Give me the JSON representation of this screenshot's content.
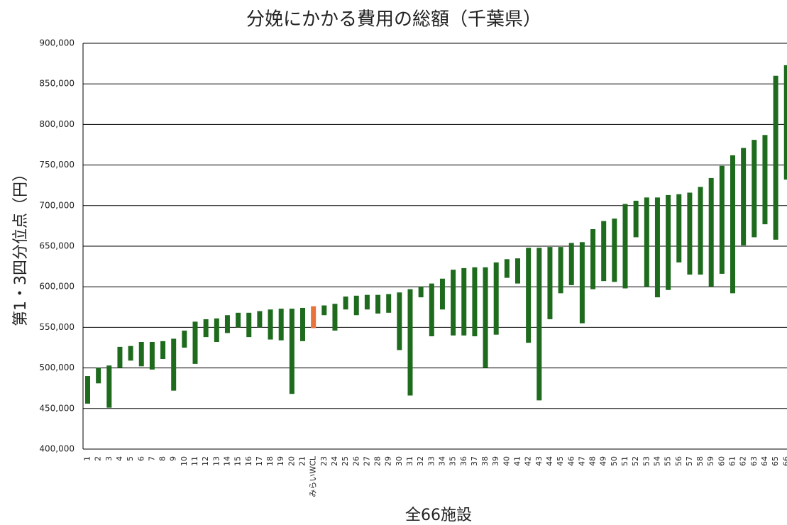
{
  "chart_data": {
    "type": "floating-bar",
    "title": "分娩にかかる費用の総額（千葉県）",
    "x_label": "全66施設",
    "y_label": "第1・3四分位点（円）",
    "categories": [
      "1",
      "2",
      "3",
      "4",
      "5",
      "6",
      "7",
      "8",
      "9",
      "10",
      "11",
      "12",
      "13",
      "14",
      "15",
      "16",
      "17",
      "18",
      "19",
      "20",
      "21",
      "みらいWCL",
      "23",
      "24",
      "25",
      "26",
      "27",
      "28",
      "29",
      "30",
      "31",
      "32",
      "33",
      "34",
      "35",
      "36",
      "37",
      "38",
      "39",
      "40",
      "41",
      "42",
      "43",
      "44",
      "45",
      "46",
      "47",
      "48",
      "49",
      "50",
      "51",
      "52",
      "53",
      "54",
      "55",
      "56",
      "57",
      "58",
      "59",
      "60",
      "61",
      "62",
      "63",
      "64",
      "65",
      "66"
    ],
    "high": [
      490000,
      500000,
      503000,
      526000,
      527000,
      532000,
      532000,
      533000,
      536000,
      546000,
      557000,
      560000,
      561000,
      565000,
      568000,
      568000,
      570000,
      572000,
      573000,
      573000,
      574000,
      576000,
      577000,
      579000,
      588000,
      589000,
      590000,
      590000,
      591000,
      593000,
      597000,
      600000,
      604000,
      610000,
      621000,
      623000,
      624000,
      624000,
      630000,
      634000,
      635000,
      648000,
      648000,
      649000,
      649000,
      654000,
      655000,
      671000,
      681000,
      684000,
      702000,
      706000,
      710000,
      710000,
      713000,
      714000,
      716000,
      723000,
      734000,
      749000,
      762000,
      771000,
      781000,
      787000,
      860000,
      873000
    ],
    "low": [
      456000,
      481000,
      451000,
      500000,
      509000,
      502000,
      498000,
      511000,
      472000,
      525000,
      505000,
      538000,
      532000,
      543000,
      550000,
      538000,
      550000,
      535000,
      534000,
      468000,
      533000,
      549000,
      565000,
      546000,
      572000,
      565000,
      572000,
      567000,
      568000,
      522000,
      466000,
      587000,
      539000,
      572000,
      540000,
      540000,
      539000,
      500000,
      541000,
      611000,
      604000,
      531000,
      460000,
      560000,
      592000,
      602000,
      555000,
      597000,
      607000,
      606000,
      598000,
      661000,
      600000,
      587000,
      596000,
      630000,
      615000,
      615000,
      600000,
      616000,
      592000,
      651000,
      661000,
      677000,
      658000,
      732000
    ],
    "colors": [
      "#1e6b1e",
      "#1e6b1e",
      "#1e6b1e",
      "#1e6b1e",
      "#1e6b1e",
      "#1e6b1e",
      "#1e6b1e",
      "#1e6b1e",
      "#1e6b1e",
      "#1e6b1e",
      "#1e6b1e",
      "#1e6b1e",
      "#1e6b1e",
      "#1e6b1e",
      "#1e6b1e",
      "#1e6b1e",
      "#1e6b1e",
      "#1e6b1e",
      "#1e6b1e",
      "#1e6b1e",
      "#1e6b1e",
      "#e8743b",
      "#1e6b1e",
      "#1e6b1e",
      "#1e6b1e",
      "#1e6b1e",
      "#1e6b1e",
      "#1e6b1e",
      "#1e6b1e",
      "#1e6b1e",
      "#1e6b1e",
      "#1e6b1e",
      "#1e6b1e",
      "#1e6b1e",
      "#1e6b1e",
      "#1e6b1e",
      "#1e6b1e",
      "#1e6b1e",
      "#1e6b1e",
      "#1e6b1e",
      "#1e6b1e",
      "#1e6b1e",
      "#1e6b1e",
      "#1e6b1e",
      "#1e6b1e",
      "#1e6b1e",
      "#1e6b1e",
      "#1e6b1e",
      "#1e6b1e",
      "#1e6b1e",
      "#1e6b1e",
      "#1e6b1e",
      "#1e6b1e",
      "#1e6b1e",
      "#1e6b1e",
      "#1e6b1e",
      "#1e6b1e",
      "#1e6b1e",
      "#1e6b1e",
      "#1e6b1e",
      "#1e6b1e",
      "#1e6b1e",
      "#1e6b1e",
      "#1e6b1e",
      "#1e6b1e",
      "#1e6b1e"
    ],
    "ylim": [
      400000,
      900000
    ],
    "yticks": [
      {
        "value": 400000,
        "label": "400,000"
      },
      {
        "value": 450000,
        "label": "450,000"
      },
      {
        "value": 500000,
        "label": "500,000"
      },
      {
        "value": 550000,
        "label": "550,000"
      },
      {
        "value": 600000,
        "label": "600,000"
      },
      {
        "value": 650000,
        "label": "650,000"
      },
      {
        "value": 700000,
        "label": "700,000"
      },
      {
        "value": 750000,
        "label": "750,000"
      },
      {
        "value": 800000,
        "label": "800,000"
      },
      {
        "value": 850000,
        "label": "850,000"
      },
      {
        "value": 900000,
        "label": "900,000"
      }
    ],
    "grid": true
  }
}
